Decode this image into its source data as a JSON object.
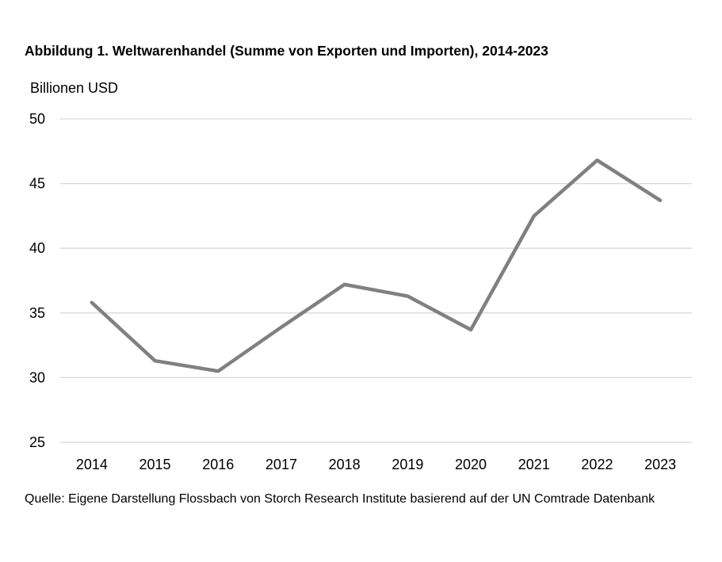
{
  "figure": {
    "title": "Abbildung 1. Weltwarenhandel (Summe von Exporten und Importen), 2014-2023",
    "unit": "Billionen USD",
    "source": "Quelle: Eigene Darstellung Flossbach von Storch Research Institute basierend auf der UN Comtrade Datenbank"
  },
  "chart_data": {
    "type": "line",
    "title": "Abbildung 1. Weltwarenhandel (Summe von Exporten und Importen), 2014-2023",
    "ylabel": "Billionen USD",
    "xlabel": "",
    "categories": [
      "2014",
      "2015",
      "2016",
      "2017",
      "2018",
      "2019",
      "2020",
      "2021",
      "2022",
      "2023"
    ],
    "series": [
      {
        "values": [
          35.8,
          31.3,
          30.5,
          33.9,
          37.2,
          36.3,
          33.7,
          42.5,
          46.8,
          43.7
        ],
        "color": "#808080"
      }
    ],
    "yticks": [
      "25",
      "30",
      "35",
      "40",
      "45",
      "50"
    ],
    "ylim": [
      25,
      50
    ],
    "grid": true,
    "legend": "none"
  }
}
